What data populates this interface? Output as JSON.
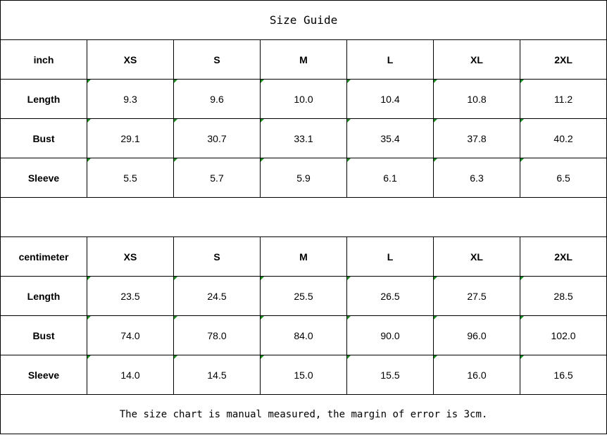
{
  "title": "Size Guide",
  "tables": [
    {
      "unit": "inch",
      "sizes": [
        "XS",
        "S",
        "M",
        "L",
        "XL",
        "2XL"
      ],
      "rows": [
        {
          "label": "Length",
          "values": [
            "9.3",
            "9.6",
            "10.0",
            "10.4",
            "10.8",
            "11.2"
          ]
        },
        {
          "label": "Bust",
          "values": [
            "29.1",
            "30.7",
            "33.1",
            "35.4",
            "37.8",
            "40.2"
          ]
        },
        {
          "label": "Sleeve",
          "values": [
            "5.5",
            "5.7",
            "5.9",
            "6.1",
            "6.3",
            "6.5"
          ]
        }
      ]
    },
    {
      "unit": "centimeter",
      "sizes": [
        "XS",
        "S",
        "M",
        "L",
        "XL",
        "2XL"
      ],
      "rows": [
        {
          "label": "Length",
          "values": [
            "23.5",
            "24.5",
            "25.5",
            "26.5",
            "27.5",
            "28.5"
          ]
        },
        {
          "label": "Bust",
          "values": [
            "74.0",
            "78.0",
            "84.0",
            "90.0",
            "96.0",
            "102.0"
          ]
        },
        {
          "label": "Sleeve",
          "values": [
            "14.0",
            "14.5",
            "15.0",
            "15.5",
            "16.0",
            "16.5"
          ]
        }
      ]
    }
  ],
  "note": "The size chart is manual measured, the margin of error is 3cm.",
  "colors": {
    "error_indicator": "#1a8a1a",
    "border": "#000000"
  }
}
